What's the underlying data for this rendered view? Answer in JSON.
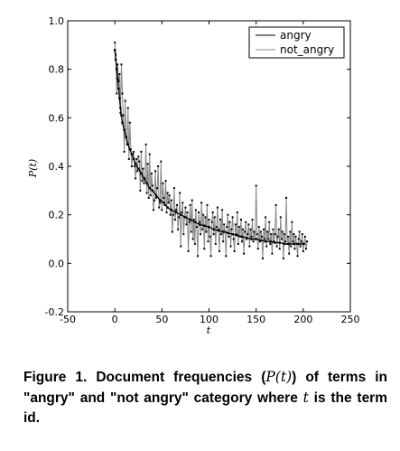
{
  "chart_data": {
    "type": "line",
    "title": "",
    "xlabel": "t",
    "ylabel": "P(t)",
    "xlim": [
      -50,
      250
    ],
    "ylim": [
      -0.2,
      1.0
    ],
    "xticks": [
      "-50",
      "0",
      "50",
      "100",
      "150",
      "200",
      "250"
    ],
    "yticks": [
      "-0.2",
      "0.0",
      "0.2",
      "0.4",
      "0.6",
      "0.8",
      "1.0"
    ],
    "legend": {
      "placement": "top-right",
      "entries": [
        "angry",
        "not_angry"
      ]
    },
    "series": [
      {
        "name": "angry",
        "color": "#000000",
        "x": [
          0,
          1,
          2,
          3,
          4,
          5,
          6,
          7,
          8,
          10,
          12,
          14,
          16,
          18,
          20,
          22,
          25,
          28,
          31,
          34,
          37,
          40,
          44,
          48,
          52,
          56,
          60,
          65,
          70,
          75,
          80,
          85,
          90,
          95,
          100,
          105,
          110,
          115,
          120,
          125,
          130,
          135,
          140,
          145,
          150,
          155,
          160,
          165,
          170,
          175,
          180,
          185,
          190,
          195,
          200
        ],
        "y": [
          0.88,
          0.84,
          0.8,
          0.76,
          0.72,
          0.68,
          0.64,
          0.61,
          0.58,
          0.55,
          0.52,
          0.49,
          0.47,
          0.45,
          0.43,
          0.41,
          0.39,
          0.37,
          0.35,
          0.33,
          0.31,
          0.3,
          0.28,
          0.26,
          0.25,
          0.23,
          0.22,
          0.21,
          0.2,
          0.19,
          0.18,
          0.17,
          0.16,
          0.155,
          0.15,
          0.14,
          0.135,
          0.13,
          0.125,
          0.12,
          0.115,
          0.11,
          0.105,
          0.1,
          0.1,
          0.095,
          0.09,
          0.09,
          0.085,
          0.085,
          0.08,
          0.08,
          0.08,
          0.08,
          0.08
        ]
      },
      {
        "name": "not_angry",
        "color": "#888888",
        "x_start": 0,
        "x_step": 1,
        "y": [
          0.91,
          0.86,
          0.7,
          0.82,
          0.75,
          0.78,
          0.62,
          0.82,
          0.7,
          0.61,
          0.46,
          0.67,
          0.52,
          0.49,
          0.64,
          0.43,
          0.58,
          0.47,
          0.4,
          0.45,
          0.46,
          0.4,
          0.35,
          0.43,
          0.38,
          0.44,
          0.42,
          0.3,
          0.46,
          0.34,
          0.39,
          0.33,
          0.35,
          0.49,
          0.29,
          0.41,
          0.27,
          0.45,
          0.28,
          0.37,
          0.32,
          0.22,
          0.26,
          0.38,
          0.27,
          0.31,
          0.4,
          0.23,
          0.25,
          0.42,
          0.22,
          0.33,
          0.27,
          0.24,
          0.34,
          0.21,
          0.29,
          0.25,
          0.28,
          0.2,
          0.26,
          0.13,
          0.2,
          0.31,
          0.18,
          0.22,
          0.24,
          0.14,
          0.19,
          0.29,
          0.07,
          0.21,
          0.25,
          0.12,
          0.19,
          0.23,
          0.16,
          0.21,
          0.05,
          0.17,
          0.24,
          0.13,
          0.26,
          0.1,
          0.18,
          0.08,
          0.22,
          0.15,
          0.03,
          0.21,
          0.17,
          0.12,
          0.25,
          0.14,
          0.2,
          0.06,
          0.19,
          0.13,
          0.24,
          0.09,
          0.18,
          0.11,
          0.03,
          0.17,
          0.21,
          0.12,
          0.19,
          0.08,
          0.15,
          0.23,
          0.14,
          0.05,
          0.18,
          0.12,
          0.22,
          0.09,
          0.16,
          0.13,
          0.03,
          0.15,
          0.2,
          0.11,
          0.17,
          0.07,
          0.14,
          0.19,
          0.1,
          0.05,
          0.16,
          0.12,
          0.21,
          0.08,
          0.15,
          0.11,
          0.18,
          0.09,
          0.14,
          0.04,
          0.13,
          0.17,
          0.1,
          0.12,
          0.16,
          0.07,
          0.14,
          0.11,
          0.18,
          0.09,
          0.13,
          0.1,
          0.32,
          0.12,
          0.06,
          0.15,
          0.09,
          0.13,
          0.11,
          0.02,
          0.14,
          0.1,
          0.19,
          0.07,
          0.13,
          0.1,
          0.17,
          0.08,
          0.12,
          0.04,
          0.14,
          0.09,
          0.12,
          0.24,
          0.07,
          0.11,
          0.14,
          0.06,
          0.19,
          0.1,
          0.13,
          0.02,
          0.12,
          0.09,
          0.27,
          0.08,
          0.11,
          0.04,
          0.13,
          0.07,
          0.17,
          0.09,
          0.12,
          0.06,
          0.11,
          0.08,
          0.03,
          0.1,
          0.13,
          0.07,
          0.09,
          0.12,
          0.05,
          0.08,
          0.11,
          0.06,
          0.09
        ]
      }
    ]
  },
  "caption": {
    "prefix": "Figure 1. Document frequencies (",
    "math": "P(t)",
    "middle": ") of terms in \"angry\" and \"not angry\" category where ",
    "math2": "t",
    "suffix": " is the term id."
  }
}
